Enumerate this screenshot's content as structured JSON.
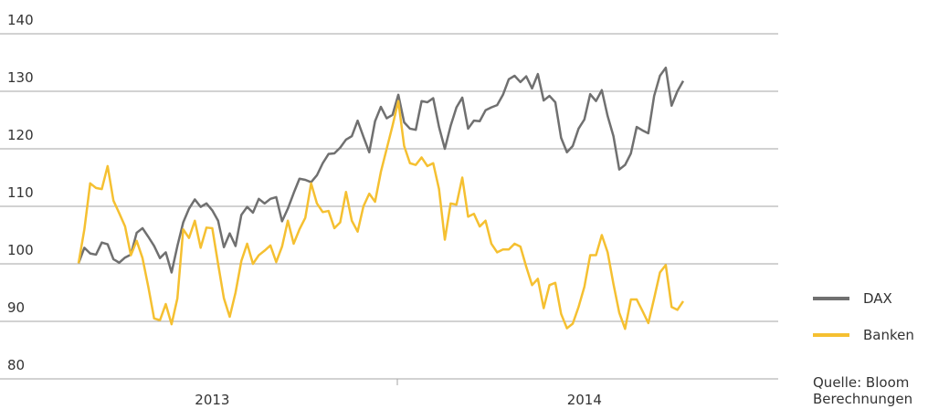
{
  "chart_data": {
    "type": "line",
    "categories": [
      null,
      null,
      null,
      null,
      null,
      null,
      null,
      null,
      null,
      null,
      null,
      null,
      null,
      null,
      null,
      null,
      null,
      null,
      null,
      null,
      null,
      null,
      null,
      "2013",
      null,
      null,
      null,
      null,
      null,
      null,
      null,
      null,
      null,
      null,
      null,
      null,
      null,
      null,
      null,
      null,
      null,
      null,
      null,
      null,
      null,
      null,
      null,
      null,
      null,
      null,
      null,
      null,
      null,
      null,
      null,
      null,
      null,
      null,
      null,
      null,
      null,
      null,
      null,
      null,
      null,
      null,
      null,
      null,
      null,
      null,
      null,
      null,
      null,
      null,
      null,
      null,
      null,
      null,
      null,
      null,
      null,
      null,
      null,
      null,
      null,
      null,
      null,
      "2014",
      null,
      null,
      null,
      null,
      null,
      null,
      null,
      null,
      null,
      null,
      null,
      null,
      null,
      null,
      null,
      null,
      null
    ],
    "series": [
      {
        "name": "DAX",
        "color": "#707070",
        "values": [
          100.1,
          102.8,
          101.8,
          101.6,
          103.7,
          103.4,
          100.8,
          100.2,
          101.1,
          101.6,
          105.4,
          106.2,
          104.7,
          103.1,
          101.0,
          102.0,
          98.5,
          103.1,
          107.2,
          109.6,
          111.2,
          109.9,
          110.5,
          109.3,
          107.5,
          102.9,
          105.3,
          103.1,
          108.5,
          109.9,
          108.9,
          111.3,
          110.5,
          111.3,
          111.6,
          107.4,
          109.6,
          112.3,
          114.8,
          114.6,
          114.2,
          115.4,
          117.5,
          119.1,
          119.2,
          120.2,
          121.6,
          122.2,
          124.9,
          122.1,
          119.4,
          124.8,
          127.3,
          125.3,
          125.9,
          129.4,
          124.6,
          123.5,
          123.3,
          128.3,
          128.1,
          128.8,
          123.8,
          120.0,
          124.0,
          127.2,
          128.9,
          123.5,
          124.9,
          124.8,
          126.7,
          127.2,
          127.6,
          129.4,
          132.1,
          132.7,
          131.6,
          132.6,
          130.5,
          133.0,
          128.4,
          129.2,
          128.1,
          121.9,
          119.4,
          120.5,
          123.5,
          125.1,
          129.5,
          128.3,
          130.2,
          125.7,
          122.2,
          116.4,
          117.2,
          119.2,
          123.8,
          123.2,
          122.7,
          129.2,
          132.7,
          134.1,
          127.5,
          130.0,
          131.8
        ]
      },
      {
        "name": "Banken",
        "color": "#f5c031",
        "values": [
          100.1,
          106,
          114,
          113.2,
          113,
          117,
          111,
          108.8,
          106.5,
          101.5,
          104,
          101,
          96,
          90.5,
          90.2,
          93,
          89.5,
          94,
          106,
          104.5,
          107.5,
          102.8,
          106.3,
          106.2,
          100,
          94,
          90.8,
          95,
          100.5,
          103.5,
          100,
          101.5,
          102.3,
          103.2,
          100.3,
          103,
          107.5,
          103.5,
          106,
          108,
          114,
          110.5,
          109,
          109.2,
          106.2,
          107.2,
          112.5,
          107.5,
          105.6,
          110,
          112.2,
          110.8,
          116,
          120,
          124,
          128.3,
          120.5,
          117.5,
          117.2,
          118.5,
          117,
          117.5,
          113,
          104.2,
          110.5,
          110.3,
          115,
          108.2,
          108.7,
          106.5,
          107.5,
          103.5,
          102,
          102.5,
          102.5,
          103.5,
          103,
          99.5,
          96.3,
          97.4,
          92.3,
          96.3,
          96.7,
          91.3,
          88.8,
          89.6,
          92.5,
          96,
          101.5,
          101.5,
          105,
          102,
          96.5,
          91.5,
          88.7,
          93.8,
          93.8,
          91.8,
          89.7,
          94,
          98.5,
          99.8,
          92.5,
          92,
          93.5
        ]
      }
    ],
    "ylim": [
      80,
      140
    ],
    "yticks": [
      80,
      90,
      100,
      110,
      120,
      130,
      140
    ],
    "grid": true,
    "legend": "right",
    "source": [
      "Quelle: Bloom",
      "Berechnungen"
    ]
  }
}
